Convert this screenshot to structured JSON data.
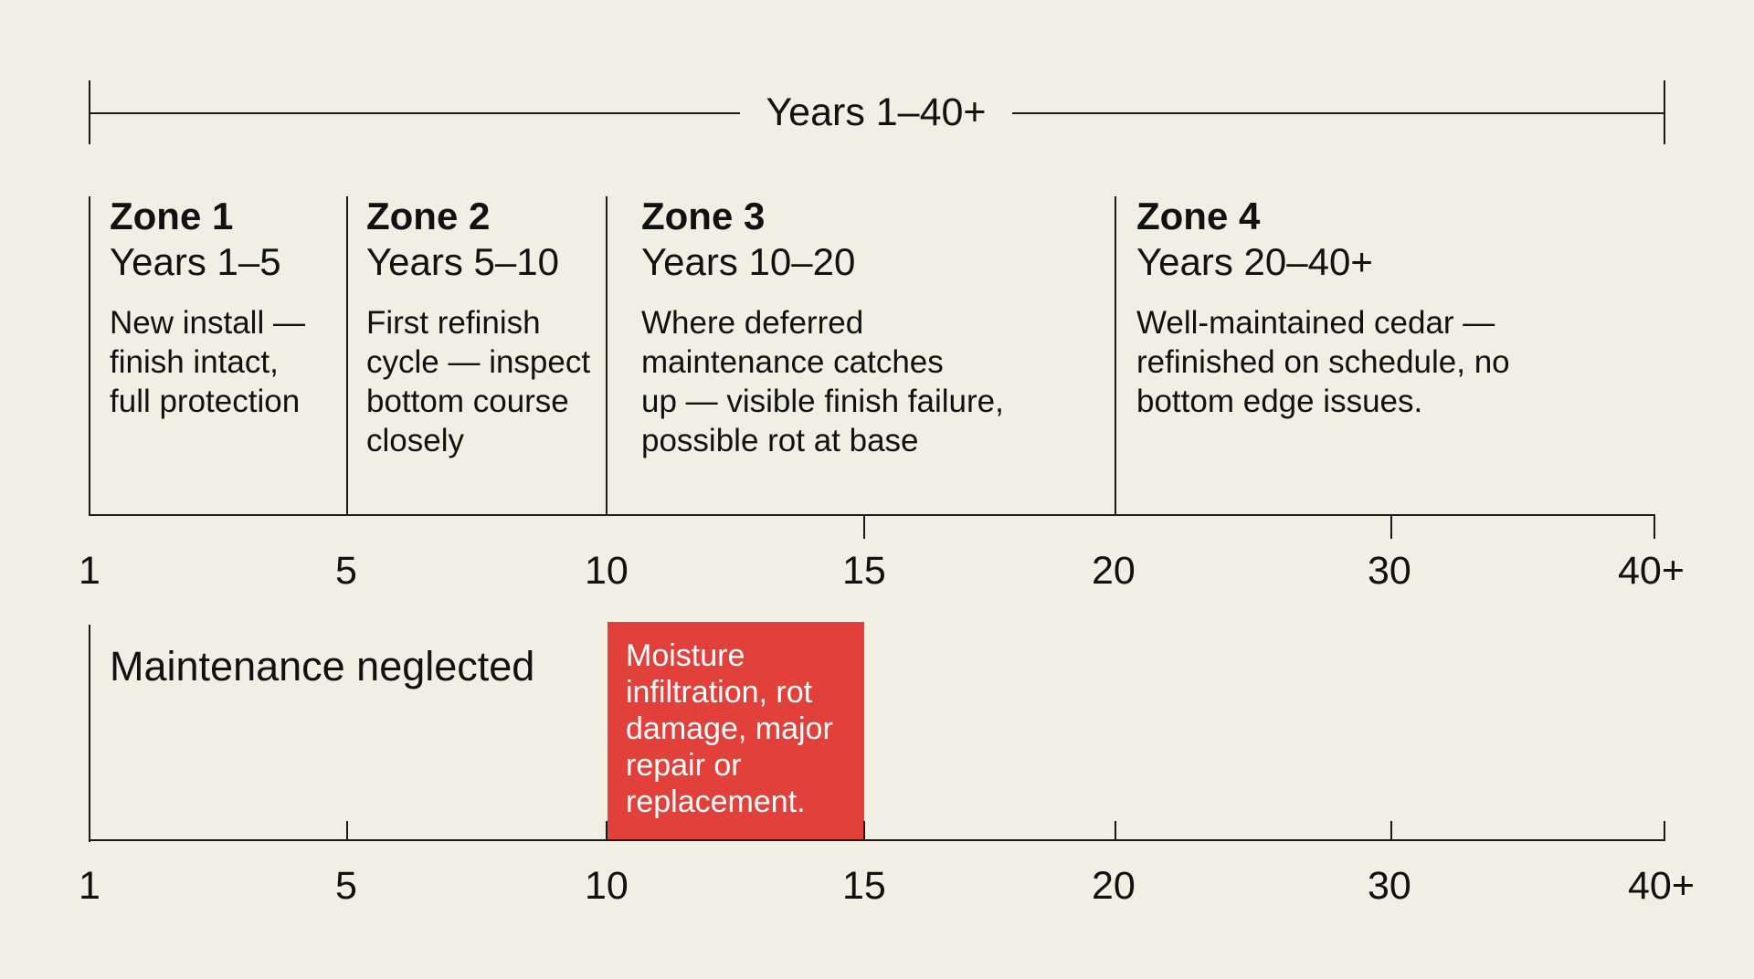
{
  "overall_range": "Years 1–40+",
  "zones": [
    {
      "title": "Zone 1",
      "years": "Years 1–5",
      "description": "New install —\nfinish intact,\nfull protection"
    },
    {
      "title": "Zone 2",
      "years": "Years 5–10",
      "description": "First refinish\ncycle — inspect\nbottom course\nclosely"
    },
    {
      "title": "Zone 3",
      "years": "Years 10–20",
      "description": "Where deferred\nmaintenance catches\nup — visible finish failure,\npossible rot at base"
    },
    {
      "title": "Zone 4",
      "years": "Years 20–40+",
      "description": "Well-maintained cedar —\nrefinished on schedule, no\nbottom edge issues."
    }
  ],
  "axis_ticks": [
    "1",
    "5",
    "10",
    "15",
    "20",
    "30",
    "40+"
  ],
  "neglected": {
    "title": "Maintenance neglected",
    "failure_start": "10",
    "failure_end": "15",
    "failure_description": "Moisture\ninfiltration, rot\ndamage, major\nrepair or\nreplacement."
  },
  "colors": {
    "background": "#f1eee4",
    "ink": "#111111",
    "failure_fill": "#e2413b",
    "failure_text": "#ffffff"
  }
}
